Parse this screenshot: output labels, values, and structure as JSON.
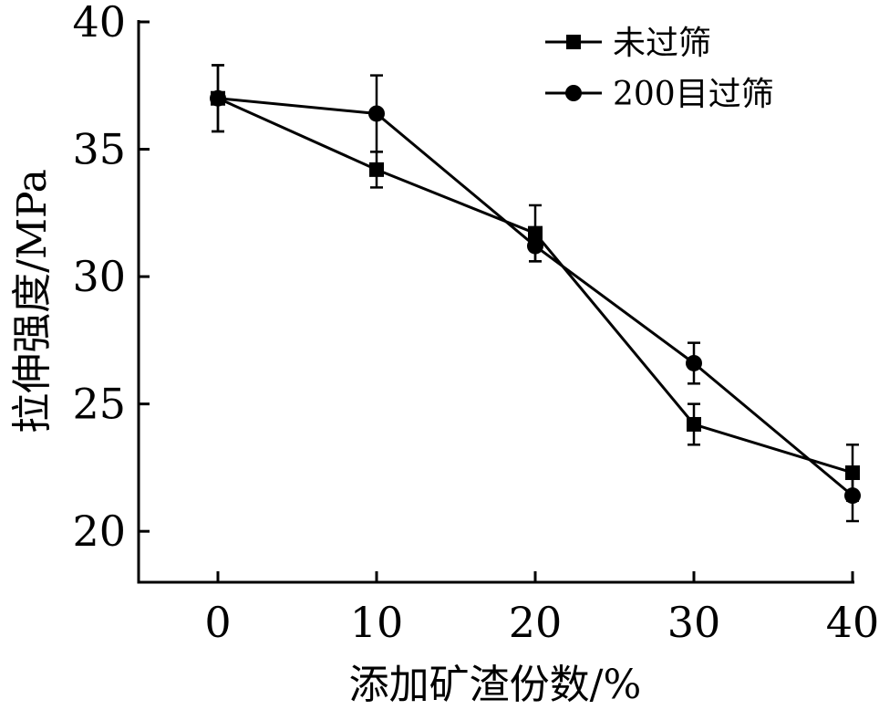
{
  "chart_data": {
    "type": "line",
    "title": "",
    "xlabel": "添加矿渣份数/%",
    "ylabel": "拉伸强度/MPa",
    "x": [
      0,
      10,
      20,
      30,
      40
    ],
    "xlim": [
      -5,
      40
    ],
    "ylim": [
      18,
      40
    ],
    "yticks": [
      20,
      25,
      30,
      35,
      40
    ],
    "xticks": [
      0,
      10,
      20,
      30,
      40
    ],
    "grid": false,
    "legend_position": "top-right",
    "series": [
      {
        "name": "未过筛",
        "marker": "square",
        "color": "#000000",
        "values": [
          37.0,
          34.2,
          31.7,
          24.2,
          22.3
        ],
        "error": [
          1.3,
          0.7,
          1.1,
          0.8,
          1.1
        ]
      },
      {
        "name": "200目过筛",
        "marker": "circle",
        "color": "#000000",
        "values": [
          37.0,
          36.4,
          31.2,
          26.6,
          21.4
        ],
        "error": [
          1.3,
          1.5,
          0.6,
          0.8,
          1.0
        ]
      }
    ]
  }
}
